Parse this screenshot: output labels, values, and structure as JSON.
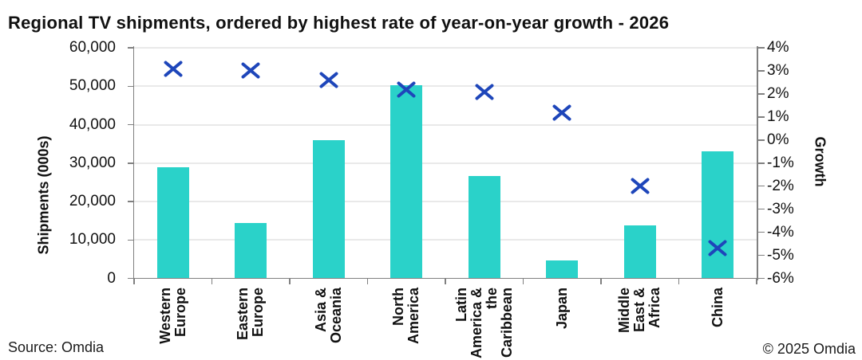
{
  "title": "Regional TV shipments, ordered by highest rate of year-on-year growth - 2026",
  "footer": {
    "source": "Source: Omdia",
    "copyright": "© 2025 Omdia"
  },
  "chart_data": {
    "type": "combo-bar-scatter",
    "title": "Regional TV shipments, ordered by highest rate of year-on-year growth - 2026",
    "grid": "horizontal",
    "legend": "none",
    "categories": [
      "Western Europe",
      "Eastern Europe",
      "Asia & Oceania",
      "North America",
      "Latin America & the Caribbean",
      "Japan",
      "Middle East & Africa",
      "China"
    ],
    "categories_lines": [
      [
        "Western",
        "Europe"
      ],
      [
        "Eastern",
        "Europe"
      ],
      [
        "Asia &",
        "Oceania"
      ],
      [
        "North",
        "America"
      ],
      [
        "Latin",
        "America &",
        "the",
        "Caribbean"
      ],
      [
        "Japan"
      ],
      [
        "Middle",
        "East &",
        "Africa"
      ],
      [
        "China"
      ]
    ],
    "series": [
      {
        "name": "Shipments (000s)",
        "type": "bar",
        "axis": "left",
        "values": [
          29000,
          14500,
          35900,
          50300,
          26700,
          4600,
          13800,
          33100
        ]
      },
      {
        "name": "Growth",
        "type": "scatter",
        "marker": "x-cross",
        "axis": "right",
        "values": [
          3.1,
          3.0,
          2.6,
          2.2,
          2.1,
          1.2,
          -2.0,
          -4.7
        ]
      }
    ],
    "left_axis": {
      "label": "Shipments (000s)",
      "min": 0,
      "max": 60000,
      "ticks": [
        {
          "value": 0,
          "label": "0"
        },
        {
          "value": 10000,
          "label": "10,000"
        },
        {
          "value": 20000,
          "label": "20,000"
        },
        {
          "value": 30000,
          "label": "30,000"
        },
        {
          "value": 40000,
          "label": "40,000"
        },
        {
          "value": 50000,
          "label": "50,000"
        },
        {
          "value": 60000,
          "label": "60,000"
        }
      ]
    },
    "right_axis": {
      "label": "Growth",
      "min": -6,
      "max": 4,
      "ticks": [
        {
          "value": 4,
          "label": "4%"
        },
        {
          "value": 3,
          "label": "3%"
        },
        {
          "value": 2,
          "label": "2%"
        },
        {
          "value": 1,
          "label": "1%"
        },
        {
          "value": 0,
          "label": "0%"
        },
        {
          "value": -1,
          "label": "-1%"
        },
        {
          "value": -2,
          "label": "-2%"
        },
        {
          "value": -3,
          "label": "-3%"
        },
        {
          "value": -4,
          "label": "-4%"
        },
        {
          "value": -5,
          "label": "-5%"
        },
        {
          "value": -6,
          "label": "-6%"
        }
      ]
    },
    "colors": {
      "bar": "#2ad2c9",
      "marker": "#1e46ba",
      "axis": "#808080",
      "gridline": "#e9e9e9",
      "text": "#111111"
    }
  }
}
